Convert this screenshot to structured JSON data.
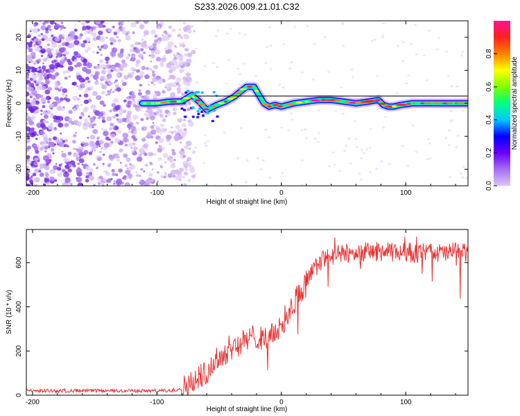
{
  "chart_data": [
    {
      "type": "heatmap",
      "title": "S233.2026.009.21.01.C32",
      "xlabel": "Height of straight line (km)",
      "ylabel": "Frequency (Hz)",
      "xlim": [
        -205,
        150
      ],
      "ylim": [
        -25,
        25
      ],
      "xticks": [
        -200,
        -100,
        0,
        100
      ],
      "xtick_labels": [
        "-200",
        "-100",
        "0",
        "100"
      ],
      "yticks": [
        -20,
        -10,
        0,
        10,
        20
      ],
      "ytick_labels": [
        "-20",
        "-10",
        "0",
        "10",
        "20"
      ],
      "colorbar": {
        "label": "Normalized spectral amplitude",
        "range": [
          0.0,
          1.0
        ],
        "ticks": [
          0.0,
          0.2,
          0.4,
          0.6,
          0.8
        ],
        "tick_labels": [
          "0.0",
          "0.2",
          "0.4",
          "0.6",
          "0.8"
        ],
        "colors": [
          "#dcc6f7",
          "#a46ff2",
          "#6a00ff",
          "#0000ff",
          "#00c8ff",
          "#00ff80",
          "#7fff00",
          "#ffff00",
          "#ff8000",
          "#ff2020",
          "#ff1493"
        ]
      },
      "ridge": {
        "x": [
          -112,
          -100,
          -90,
          -80,
          -72,
          -66,
          -60,
          -52,
          -45,
          -38,
          -33,
          -28,
          -22,
          -18,
          -14,
          -10,
          -5,
          0,
          10,
          20,
          30,
          40,
          50,
          60,
          70,
          78,
          82,
          86,
          90,
          96,
          105,
          115,
          130,
          150
        ],
        "y": [
          0,
          0,
          0.5,
          0.6,
          2.5,
          0.5,
          -2,
          -0.5,
          0.5,
          2,
          3.5,
          5,
          5,
          2.5,
          0,
          -1,
          -0.5,
          -1,
          0,
          0.5,
          1,
          1,
          0.5,
          0,
          0.5,
          1,
          -0.5,
          -1,
          -1,
          -0.5,
          0,
          0,
          0,
          0
        ]
      },
      "fit_line": {
        "x": [
          -70,
          150
        ],
        "y": [
          2.2,
          2.2
        ]
      }
    },
    {
      "type": "line",
      "title": "",
      "xlabel": "Height of straight line (km)",
      "ylabel": "SNR (10 * v/v)",
      "xlim": [
        -205,
        150
      ],
      "ylim": [
        0,
        750
      ],
      "xticks": [
        -200,
        -100,
        0,
        100
      ],
      "xtick_labels": [
        "-200",
        "-100",
        "0",
        "100"
      ],
      "yticks": [
        0,
        200,
        400,
        600
      ],
      "ytick_labels": [
        "0",
        "200",
        "400",
        "600"
      ],
      "series": [
        {
          "name": "SNR",
          "color": "#e83030",
          "x": [
            -205,
            -180,
            -150,
            -120,
            -90,
            -80,
            -70,
            -60,
            -50,
            -40,
            -30,
            -20,
            -10,
            0,
            10,
            20,
            30,
            40,
            50,
            60,
            70,
            80,
            90,
            100,
            110,
            120,
            130,
            140,
            150
          ],
          "y": [
            20,
            20,
            20,
            20,
            20,
            30,
            60,
            110,
            170,
            220,
            240,
            270,
            250,
            320,
            420,
            510,
            600,
            630,
            640,
            645,
            650,
            650,
            645,
            650,
            640,
            650,
            640,
            650,
            640
          ]
        }
      ]
    }
  ]
}
